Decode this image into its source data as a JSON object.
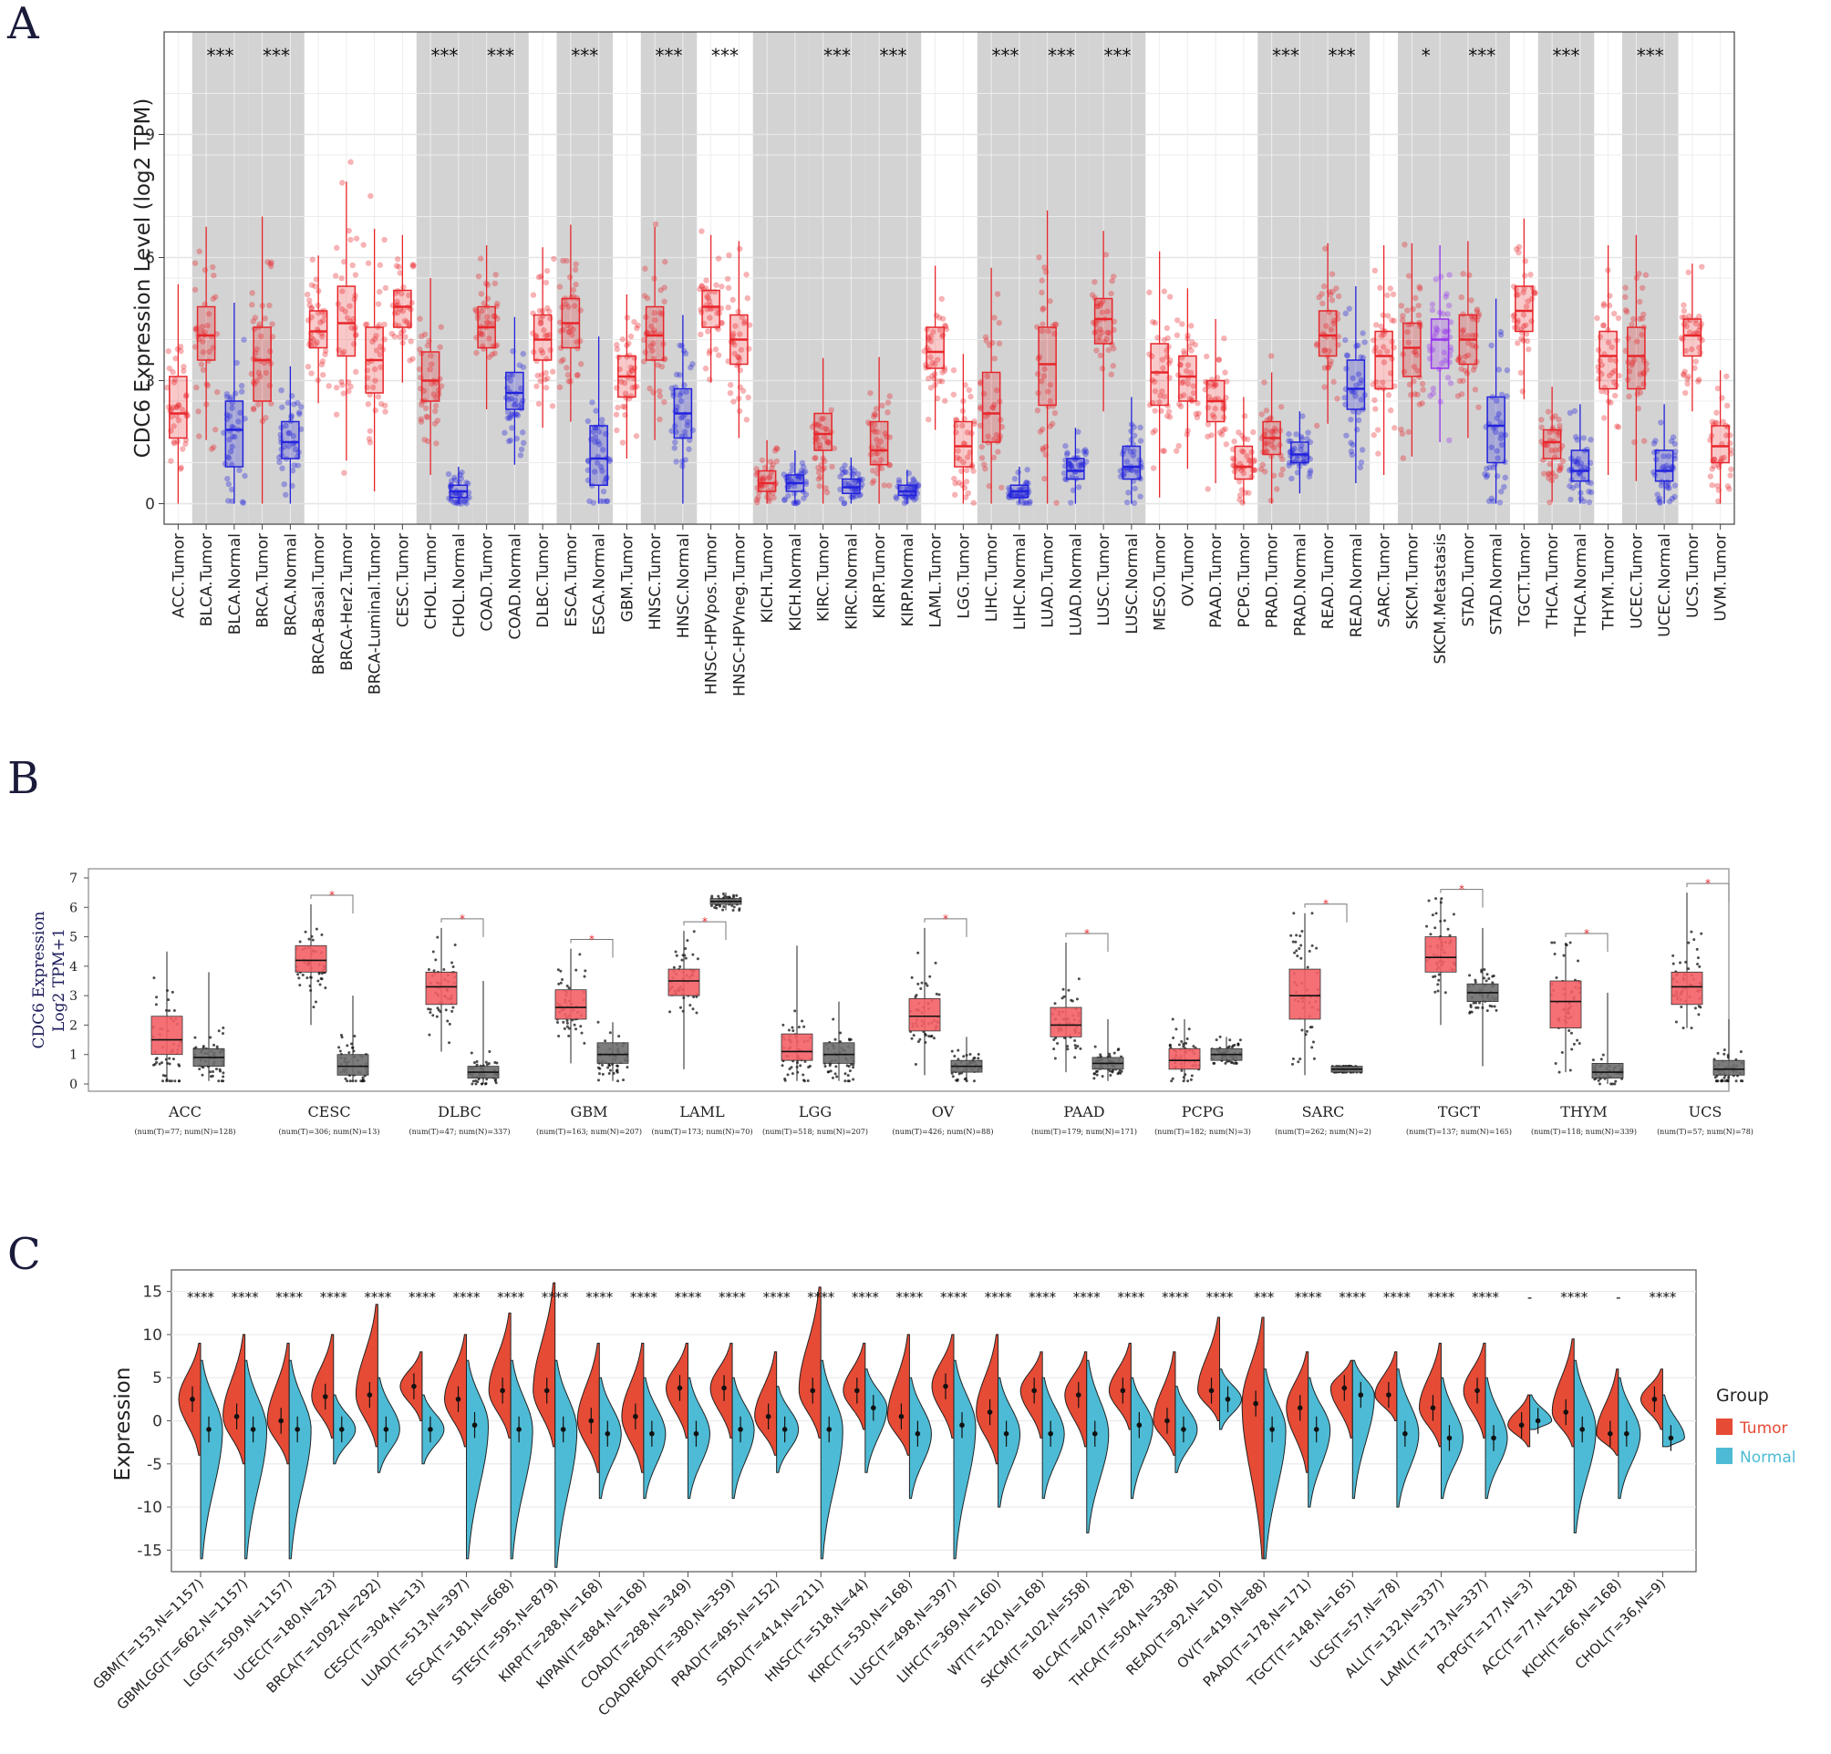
{
  "panels": {
    "a": {
      "letter": "A"
    },
    "b": {
      "letter": "B"
    },
    "c": {
      "letter": "C"
    }
  },
  "colors": {
    "tumor_a": "#e8262b",
    "normal_a": "#2222dd",
    "metastasis_a": "#9933ee",
    "shade_a": "#d3d3d3",
    "tumor_b": "#f46166",
    "normal_b": "#6e6e6e",
    "tumor_c": "#e64b35",
    "normal_c": "#4dbbd5"
  },
  "chart_data": [
    {
      "type": "box",
      "ylabel": "CDC6 Expression Level (log2 TPM)",
      "ylim": [
        -0.5,
        11.5
      ],
      "yticks": [
        0,
        3,
        6,
        9
      ],
      "grid": true,
      "categories": [
        "ACC.Tumor",
        "BLCA.Tumor",
        "BLCA.Normal",
        "BRCA.Tumor",
        "BRCA.Normal",
        "BRCA-Basal.Tumor",
        "BRCA-Her2.Tumor",
        "BRCA-Luminal.Tumor",
        "CESC.Tumor",
        "CHOL.Tumor",
        "CHOL.Normal",
        "COAD.Tumor",
        "COAD.Normal",
        "DLBC.Tumor",
        "ESCA.Tumor",
        "ESCA.Normal",
        "GBM.Tumor",
        "HNSC.Tumor",
        "HNSC.Normal",
        "HNSC-HPVpos.Tumor",
        "HNSC-HPVneg.Tumor",
        "KICH.Tumor",
        "KICH.Normal",
        "KIRC.Tumor",
        "KIRC.Normal",
        "KIRP.Tumor",
        "KIRP.Normal",
        "LAML.Tumor",
        "LGG.Tumor",
        "LIHC.Tumor",
        "LIHC.Normal",
        "LUAD.Tumor",
        "LUAD.Normal",
        "LUSC.Tumor",
        "LUSC.Normal",
        "MESO.Tumor",
        "OV.Tumor",
        "PAAD.Tumor",
        "PCPG.Tumor",
        "PRAD.Tumor",
        "PRAD.Normal",
        "READ.Tumor",
        "READ.Normal",
        "SARC.Tumor",
        "SKCM.Tumor",
        "SKCM.Metastasis",
        "STAD.Tumor",
        "STAD.Normal",
        "TGCT.Tumor",
        "THCA.Tumor",
        "THCA.Normal",
        "THYM.Tumor",
        "UCEC.Tumor",
        "UCEC.Normal",
        "UCS.Tumor",
        "UVM.Tumor"
      ],
      "groups": [
        "T",
        "T",
        "N",
        "T",
        "N",
        "T",
        "T",
        "T",
        "T",
        "T",
        "N",
        "T",
        "N",
        "T",
        "T",
        "N",
        "T",
        "T",
        "N",
        "T",
        "T",
        "T",
        "N",
        "T",
        "N",
        "T",
        "N",
        "T",
        "T",
        "T",
        "N",
        "T",
        "N",
        "T",
        "N",
        "T",
        "T",
        "T",
        "T",
        "T",
        "N",
        "T",
        "N",
        "T",
        "T",
        "M",
        "T",
        "N",
        "T",
        "T",
        "N",
        "T",
        "T",
        "N",
        "T",
        "T"
      ],
      "medians": [
        2.2,
        4.1,
        1.8,
        3.5,
        1.5,
        4.2,
        4.4,
        3.5,
        4.8,
        3.0,
        0.3,
        4.3,
        2.7,
        4.0,
        4.4,
        1.1,
        3.1,
        4.1,
        2.2,
        4.8,
        4.0,
        0.5,
        0.5,
        1.7,
        0.4,
        1.3,
        0.3,
        3.7,
        1.4,
        2.2,
        0.3,
        3.4,
        0.8,
        4.5,
        0.9,
        3.2,
        3.1,
        2.5,
        0.9,
        1.6,
        1.2,
        4.1,
        2.8,
        3.6,
        3.8,
        4.0,
        4.0,
        1.9,
        4.7,
        1.5,
        0.8,
        3.6,
        3.6,
        0.8,
        4.1,
        1.4
      ],
      "q1": [
        1.6,
        3.5,
        0.9,
        2.5,
        1.1,
        3.8,
        3.6,
        2.7,
        4.3,
        2.5,
        0.15,
        3.8,
        2.3,
        3.5,
        3.8,
        0.45,
        2.6,
        3.5,
        1.6,
        4.3,
        3.4,
        0.3,
        0.3,
        1.3,
        0.25,
        0.95,
        0.2,
        3.3,
        0.9,
        1.5,
        0.15,
        2.4,
        0.6,
        3.9,
        0.6,
        2.4,
        2.5,
        2.0,
        0.6,
        1.2,
        1.0,
        3.6,
        2.3,
        2.8,
        3.1,
        3.3,
        3.4,
        1.0,
        4.2,
        1.1,
        0.55,
        2.8,
        2.8,
        0.55,
        3.6,
        1.0
      ],
      "q3": [
        3.1,
        4.8,
        2.5,
        4.3,
        2.0,
        4.7,
        5.3,
        4.3,
        5.2,
        3.7,
        0.45,
        4.8,
        3.2,
        4.6,
        5.0,
        1.9,
        3.6,
        4.8,
        2.8,
        5.2,
        4.6,
        0.8,
        0.7,
        2.2,
        0.6,
        2.0,
        0.45,
        4.3,
        2.0,
        3.2,
        0.45,
        4.3,
        1.1,
        5.0,
        1.4,
        3.9,
        3.6,
        3.0,
        1.4,
        2.0,
        1.5,
        4.7,
        3.5,
        4.2,
        4.4,
        4.5,
        4.6,
        2.6,
        5.3,
        1.8,
        1.3,
        4.2,
        4.3,
        1.3,
        4.5,
        1.9
      ],
      "significance": [
        "",
        "***",
        "",
        "***",
        "",
        "",
        "",
        "",
        "",
        "***",
        "",
        "***",
        "",
        "",
        "***",
        "",
        "",
        "***",
        "",
        "***",
        "",
        "",
        "",
        "***",
        "",
        "***",
        "",
        "",
        "",
        "***",
        "",
        "***",
        "",
        "***",
        "",
        "",
        "",
        "",
        "",
        "***",
        "",
        "***",
        "",
        "",
        "*",
        "",
        "***",
        "",
        "",
        "***",
        "",
        "",
        "***",
        "",
        "",
        ""
      ]
    },
    {
      "type": "box",
      "ylabel": "CDC6 Expression\nLog2 TPM+1",
      "ylim": [
        0,
        7
      ],
      "yticks": [
        0,
        1,
        2,
        3,
        4,
        5,
        6,
        7
      ],
      "categories": [
        "ACC",
        "CESC",
        "DLBC",
        "GBM",
        "LAML",
        "LGG",
        "OV",
        "PAAD",
        "PCPG",
        "SARC",
        "TGCT",
        "THYM",
        "UCS"
      ],
      "sample_sizes": [
        "(num(T)=77; num(N)=128)",
        "(num(T)=306; num(N)=13)",
        "(num(T)=47; num(N)=337)",
        "(num(T)=163; num(N)=207)",
        "(num(T)=173; num(N)=70)",
        "(num(T)=518; num(N)=207)",
        "(num(T)=426; num(N)=88)",
        "(num(T)=179; num(N)=171)",
        "(num(T)=182; num(N)=3)",
        "(num(T)=262; num(N)=2)",
        "(num(T)=137; num(N)=165)",
        "(num(T)=118; num(N)=339)",
        "(num(T)=57; num(N)=78)"
      ],
      "tumor": {
        "q1": [
          1.0,
          3.8,
          2.7,
          2.2,
          3.0,
          0.8,
          1.8,
          1.6,
          0.5,
          2.2,
          3.8,
          1.9,
          2.7
        ],
        "median": [
          1.5,
          4.2,
          3.3,
          2.6,
          3.5,
          1.1,
          2.3,
          2.0,
          0.8,
          3.0,
          4.3,
          2.8,
          3.3
        ],
        "q3": [
          2.3,
          4.7,
          3.8,
          3.2,
          3.9,
          1.7,
          2.9,
          2.6,
          1.2,
          3.9,
          5.0,
          3.5,
          3.8
        ],
        "min": [
          0.1,
          2.0,
          1.1,
          0.7,
          0.5,
          0.1,
          0.3,
          0.4,
          0.1,
          0.3,
          2.0,
          0.4,
          1.9
        ],
        "max": [
          4.5,
          6.1,
          5.3,
          4.6,
          5.2,
          4.7,
          5.3,
          4.8,
          2.2,
          5.8,
          6.3,
          4.8,
          6.5
        ]
      },
      "normal": {
        "q1": [
          0.6,
          0.3,
          0.2,
          0.7,
          6.1,
          0.7,
          0.4,
          0.5,
          0.8,
          0.4,
          2.8,
          0.2,
          0.3
        ],
        "median": [
          0.9,
          0.6,
          0.4,
          1.0,
          6.2,
          1.0,
          0.6,
          0.7,
          1.0,
          0.5,
          3.1,
          0.4,
          0.5
        ],
        "q3": [
          1.2,
          1.0,
          0.6,
          1.4,
          6.3,
          1.4,
          0.8,
          0.9,
          1.2,
          0.6,
          3.4,
          0.7,
          0.8
        ],
        "min": [
          0.1,
          0.1,
          0.0,
          0.1,
          5.9,
          0.1,
          0.1,
          0.1,
          0.7,
          0.4,
          0.6,
          0.0,
          0.1
        ],
        "max": [
          3.8,
          3.0,
          3.5,
          2.1,
          6.5,
          2.8,
          1.6,
          2.2,
          1.6,
          0.6,
          5.3,
          3.1,
          2.2
        ]
      },
      "significant": [
        false,
        true,
        true,
        true,
        true,
        false,
        true,
        true,
        false,
        true,
        true,
        true,
        true
      ]
    },
    {
      "type": "split-violin",
      "ylabel": "Expression",
      "ylim": [
        -17.5,
        17.5
      ],
      "yticks": [
        -15,
        -10,
        -5,
        0,
        5,
        10,
        15
      ],
      "legend": {
        "title": "Group",
        "items": [
          "Tumor",
          "Normal"
        ],
        "placement": "right"
      },
      "categories": [
        "GBM(T=153,N=1157)",
        "GBMLGG(T=662,N=1157)",
        "LGG(T=509,N=1157)",
        "UCEC(T=180,N=23)",
        "BRCA(T=1092,N=292)",
        "CESC(T=304,N=13)",
        "LUAD(T=513,N=397)",
        "ESCA(T=181,N=668)",
        "STES(T=595,N=879)",
        "KIRP(T=288,N=168)",
        "KIPAN(T=884,N=168)",
        "COAD(T=288,N=349)",
        "COADREAD(T=380,N=359)",
        "PRAD(T=495,N=152)",
        "STAD(T=414,N=211)",
        "HNSC(T=518,N=44)",
        "KIRC(T=530,N=168)",
        "LUSC(T=498,N=397)",
        "LIHC(T=369,N=160)",
        "WT(T=120,N=168)",
        "SKCM(T=102,N=558)",
        "BLCA(T=407,N=28)",
        "THCA(T=504,N=338)",
        "READ(T=92,N=10)",
        "OV(T=419,N=88)",
        "PAAD(T=178,N=171)",
        "TGCT(T=148,N=165)",
        "UCS(T=57,N=78)",
        "ALL(T=132,N=337)",
        "LAML(T=173,N=337)",
        "PCPG(T=177,N=3)",
        "ACC(T=77,N=128)",
        "KICH(T=66,N=168)",
        "CHOL(T=36,N=9)"
      ],
      "significance": [
        "****",
        "****",
        "****",
        "****",
        "****",
        "****",
        "****",
        "****",
        "****",
        "****",
        "****",
        "****",
        "****",
        "****",
        "****",
        "****",
        "****",
        "****",
        "****",
        "****",
        "****",
        "****",
        "****",
        "****",
        "***",
        "****",
        "****",
        "****",
        "****",
        "****",
        "-",
        "****",
        "-",
        "****"
      ],
      "tumor_median": [
        2.5,
        0.5,
        0.0,
        2.8,
        3.0,
        4.0,
        2.5,
        3.5,
        3.5,
        0.0,
        0.5,
        3.8,
        3.8,
        0.5,
        3.5,
        3.5,
        0.5,
        4.0,
        1.0,
        3.5,
        3.0,
        3.5,
        0.0,
        3.5,
        2.0,
        1.5,
        3.8,
        3.0,
        1.5,
        3.5,
        -0.5,
        1.0,
        -1.5,
        2.5
      ],
      "tumor_min": [
        -4,
        -5,
        -5,
        -2,
        -3,
        0,
        -3,
        -2,
        -3,
        -6,
        -6,
        -2,
        -2,
        -4,
        -2,
        -1,
        -4,
        -2,
        -5,
        -2,
        -3,
        -1,
        -4,
        0,
        -16,
        -6,
        -2,
        0,
        -3,
        -2,
        -3,
        -3,
        -4,
        -1
      ],
      "tumor_max": [
        9,
        10,
        9,
        10,
        13.5,
        8,
        10,
        12.5,
        16,
        9,
        9,
        9,
        9,
        8,
        15.5,
        9,
        10,
        10,
        10,
        8,
        8,
        9,
        8,
        12,
        12,
        8,
        7,
        8,
        9,
        9,
        3,
        9.5,
        6,
        6
      ],
      "normal_median": [
        -1.0,
        -1.0,
        -1.0,
        -1.0,
        -1.0,
        -1.0,
        -0.5,
        -1.0,
        -1.0,
        -1.5,
        -1.5,
        -1.5,
        -1.0,
        -1.0,
        -1.0,
        1.5,
        -1.5,
        -0.5,
        -1.5,
        -1.5,
        -1.5,
        -0.5,
        -1.0,
        2.5,
        -1.0,
        -1.0,
        3.0,
        -1.5,
        -2.0,
        -2.0,
        0.0,
        -1.0,
        -1.5,
        -2.0
      ],
      "normal_min": [
        -16,
        -16,
        -16,
        -5,
        -6,
        -5,
        -16,
        -16,
        -17,
        -9,
        -9,
        -9,
        -9,
        -6,
        -16,
        -6,
        -9,
        -16,
        -10,
        -9,
        -13,
        -9,
        -6,
        -1,
        -16,
        -10,
        -9,
        -10,
        -9,
        -9,
        -1,
        -13,
        -9,
        -3
      ],
      "normal_max": [
        7,
        7,
        7,
        3,
        5,
        3,
        7,
        7,
        7,
        5,
        5,
        5,
        5,
        4,
        7,
        6,
        5,
        7,
        5,
        5,
        7,
        5,
        4,
        6,
        6,
        5,
        7,
        6,
        5,
        5,
        3,
        7,
        5,
        3
      ]
    }
  ]
}
